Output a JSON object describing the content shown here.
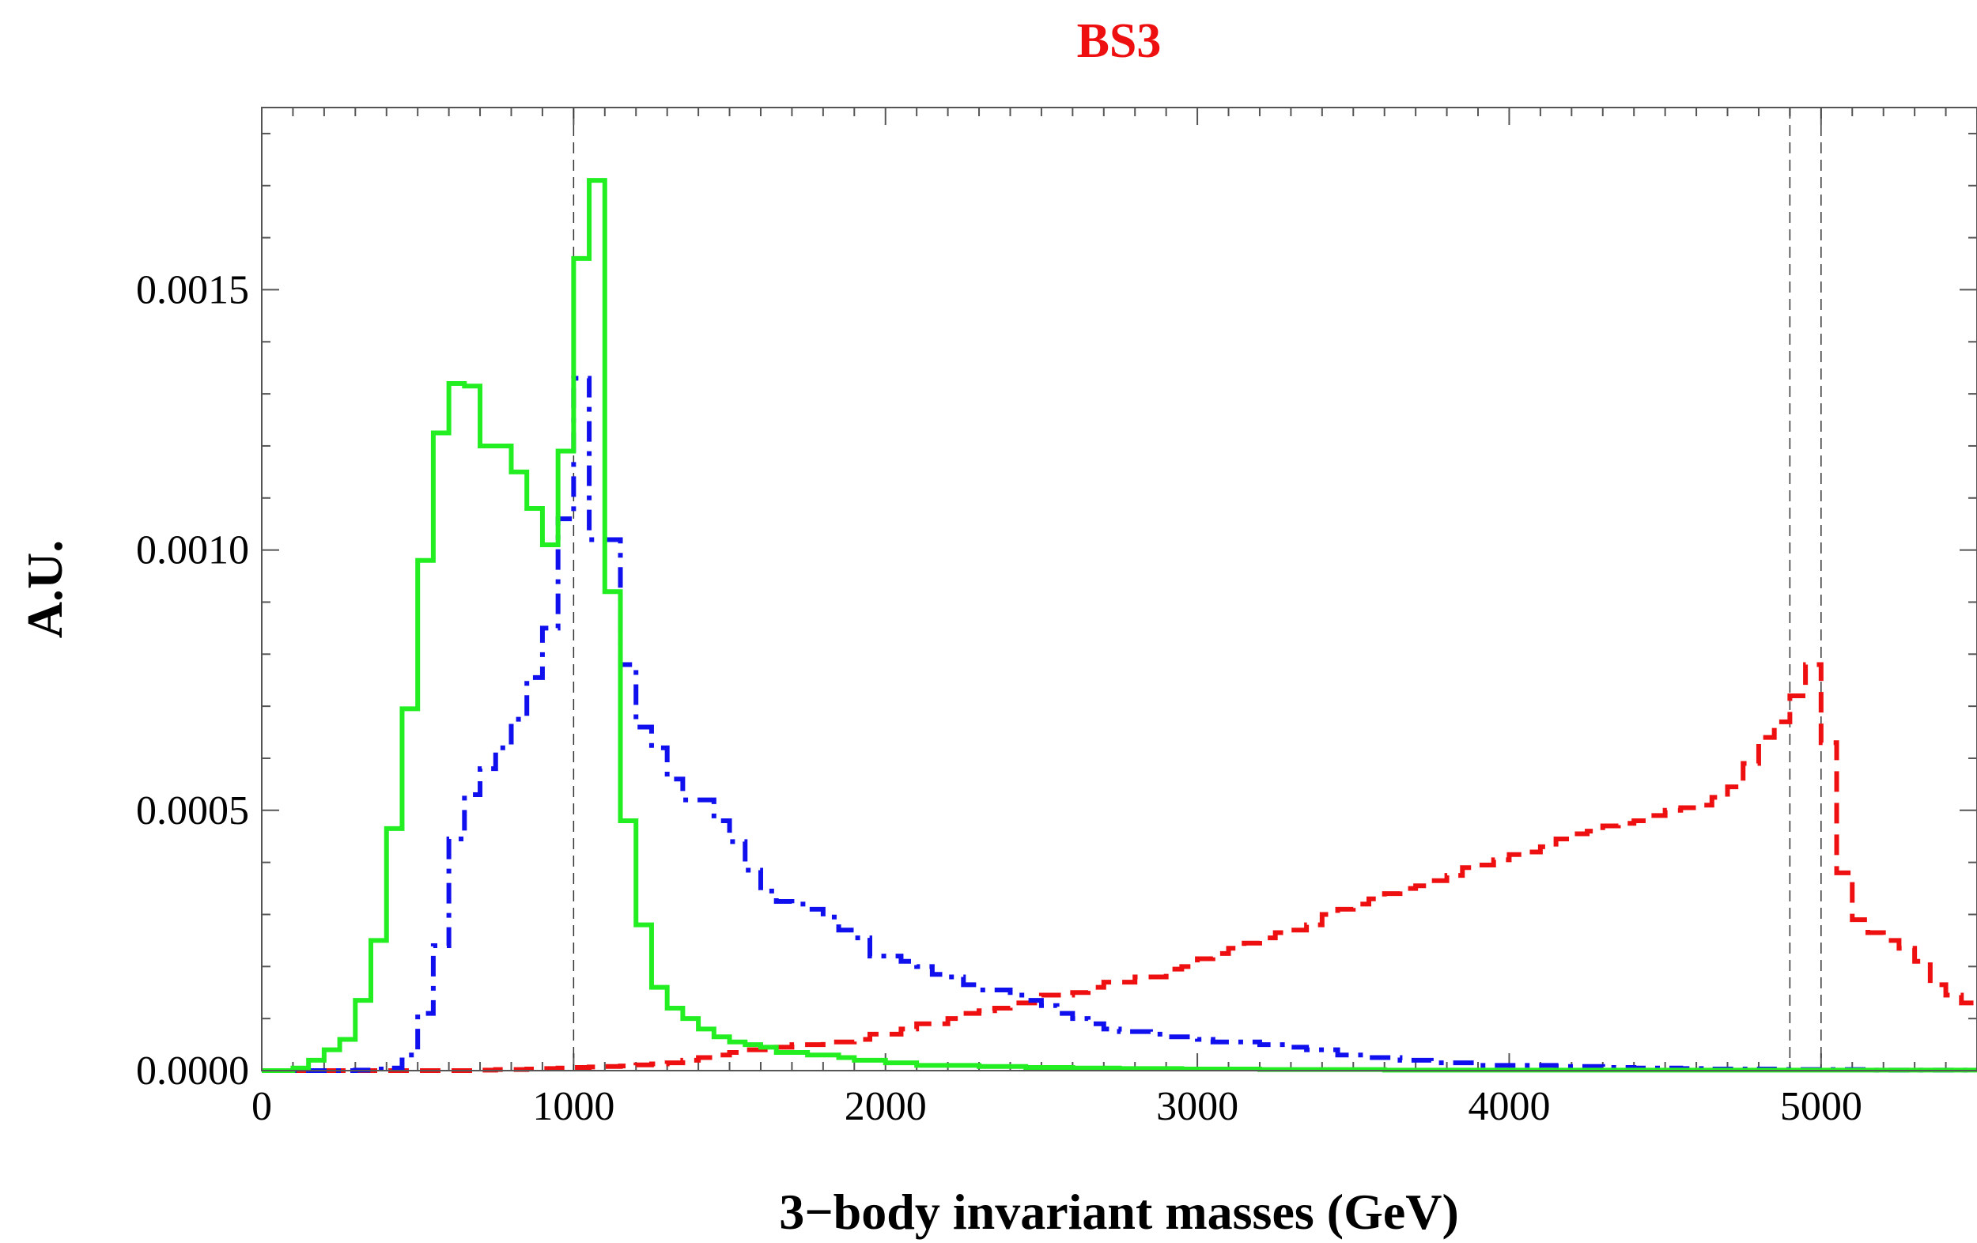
{
  "chart_data": {
    "type": "line",
    "style": "step-histogram",
    "title": "BS3",
    "xlabel": "3−body invariant masses (GeV)",
    "ylabel": "A.U.",
    "xlim": [
      0,
      5500
    ],
    "ylim": [
      0,
      0.00185
    ],
    "x_ticks": [
      0,
      1000,
      2000,
      3000,
      4000,
      5000
    ],
    "x_tick_labels": [
      "0",
      "1000",
      "2000",
      "3000",
      "4000",
      "5000"
    ],
    "y_ticks": [
      0,
      0.0005,
      0.001,
      0.0015
    ],
    "y_tick_labels": [
      "0.0000",
      "0.0005",
      "0.0010",
      "0.0015"
    ],
    "reference_lines_x": [
      1000,
      4900,
      5000
    ],
    "bin_width": 50,
    "series": [
      {
        "name": "green (solid)",
        "color": "#22ee22",
        "dash": "solid",
        "x": [
          0,
          50,
          100,
          150,
          200,
          250,
          300,
          350,
          400,
          450,
          500,
          550,
          600,
          650,
          700,
          750,
          800,
          850,
          900,
          950,
          1000,
          1050,
          1100,
          1150,
          1200,
          1250,
          1300,
          1350,
          1400,
          1450,
          1500,
          1550,
          1600,
          1650,
          1700,
          1750,
          1800,
          1850,
          1900,
          1950,
          2000,
          2050,
          2100,
          2150,
          2200,
          2250,
          2300,
          2350,
          2400,
          2450,
          2500,
          2550,
          2600,
          2650,
          2700,
          2750,
          2800,
          2850,
          2900,
          2950,
          3000,
          3050,
          3100,
          3150,
          3200,
          3250,
          3300,
          3350,
          3400,
          3450,
          3500,
          3550,
          3600,
          3650,
          3700,
          3750,
          3800,
          3850,
          3900,
          3950,
          4000,
          4050,
          4100,
          4150,
          4200,
          4250,
          4300,
          4350,
          4400,
          4450,
          4500,
          4550,
          4600,
          4650,
          4700,
          4750,
          4800,
          4850,
          4900,
          4950,
          5000,
          5050,
          5100,
          5150,
          5200,
          5250,
          5300,
          5350,
          5400,
          5450
        ],
        "values": [
          0,
          0,
          5e-06,
          2e-05,
          4e-05,
          6e-05,
          0.000135,
          0.00025,
          0.000465,
          0.000695,
          0.00098,
          0.001225,
          0.00132,
          0.001315,
          0.0012,
          0.0012,
          0.00115,
          0.00108,
          0.00101,
          0.00119,
          0.00156,
          0.00171,
          0.00092,
          0.00048,
          0.00028,
          0.00016,
          0.00012,
          0.0001,
          8e-05,
          6.5e-05,
          5.5e-05,
          5e-05,
          4.5e-05,
          3.5e-05,
          3.5e-05,
          3e-05,
          3e-05,
          2.5e-05,
          2e-05,
          2e-05,
          1.5e-05,
          1.5e-05,
          1e-05,
          1e-05,
          1e-05,
          1e-05,
          8e-06,
          8e-06,
          8e-06,
          6e-06,
          6e-06,
          6e-06,
          5e-06,
          5e-06,
          5e-06,
          4e-06,
          4e-06,
          4e-06,
          4e-06,
          3e-06,
          3e-06,
          3e-06,
          3e-06,
          3e-06,
          2e-06,
          2e-06,
          2e-06,
          2e-06,
          2e-06,
          2e-06,
          2e-06,
          2e-06,
          1e-06,
          1e-06,
          1e-06,
          1e-06,
          1e-06,
          1e-06,
          1e-06,
          1e-06,
          1e-06,
          1e-06,
          1e-06,
          1e-06,
          1e-06,
          1e-06,
          1e-06,
          1e-06,
          1e-06,
          1e-06,
          1e-06,
          1e-06,
          1e-06,
          1e-06,
          1e-06,
          1e-06,
          1e-06,
          1e-06,
          1e-06,
          1e-06,
          1e-06,
          1e-06,
          1e-06,
          1e-06,
          1e-06,
          1e-06,
          1e-06,
          1e-06,
          1e-06,
          1e-06
        ]
      },
      {
        "name": "blue (dot-dashed)",
        "color": "#1010ee",
        "dash": "dot-dash",
        "x": [
          0,
          50,
          100,
          150,
          200,
          250,
          300,
          350,
          400,
          450,
          500,
          550,
          600,
          650,
          700,
          750,
          800,
          850,
          900,
          950,
          1000,
          1050,
          1100,
          1150,
          1200,
          1250,
          1300,
          1350,
          1400,
          1450,
          1500,
          1550,
          1600,
          1650,
          1700,
          1750,
          1800,
          1850,
          1900,
          1950,
          2000,
          2050,
          2100,
          2150,
          2200,
          2250,
          2300,
          2350,
          2400,
          2450,
          2500,
          2550,
          2600,
          2650,
          2700,
          2750,
          2800,
          2850,
          2900,
          2950,
          3000,
          3050,
          3100,
          3150,
          3200,
          3250,
          3300,
          3350,
          3400,
          3450,
          3500,
          3550,
          3600,
          3650,
          3700,
          3750,
          3800,
          3850,
          3900,
          3950,
          4000,
          4050,
          4100,
          4150,
          4200,
          4250,
          4300,
          4350,
          4400,
          4450,
          4500,
          4550,
          4600,
          4650,
          4700,
          4750,
          4800,
          4850,
          4900,
          4950,
          5000,
          5050,
          5100,
          5150,
          5200,
          5250,
          5300,
          5350,
          5400,
          5450
        ],
        "values": [
          0,
          0,
          0,
          0,
          0,
          0,
          1e-06,
          3e-06,
          5e-06,
          3e-05,
          0.00011,
          0.00024,
          0.000445,
          0.00053,
          0.00058,
          0.00062,
          0.000675,
          0.000755,
          0.00085,
          0.00106,
          0.00133,
          0.00102,
          0.00102,
          0.00078,
          0.00066,
          0.00062,
          0.00056,
          0.00052,
          0.00052,
          0.00048,
          0.00044,
          0.000385,
          0.000345,
          0.000325,
          0.00032,
          0.00031,
          0.000295,
          0.00027,
          0.000255,
          0.00022,
          0.00022,
          0.00021,
          0.0002,
          0.000185,
          0.00018,
          0.000165,
          0.000155,
          0.000155,
          0.000145,
          0.000135,
          0.000125,
          0.00011,
          0.0001,
          9e-05,
          8e-05,
          7.5e-05,
          7.5e-05,
          7e-05,
          6.5e-05,
          6.5e-05,
          6e-05,
          5.5e-05,
          5.5e-05,
          5.5e-05,
          5e-05,
          5e-05,
          4.5e-05,
          4e-05,
          4e-05,
          3e-05,
          3e-05,
          2.5e-05,
          2.5e-05,
          2e-05,
          2e-05,
          1.5e-05,
          1.5e-05,
          1.5e-05,
          1e-05,
          1e-05,
          1e-05,
          1e-05,
          1e-05,
          8e-06,
          8e-06,
          8e-06,
          6e-06,
          6e-06,
          5e-06,
          5e-06,
          5e-06,
          4e-06,
          4e-06,
          3e-06,
          3e-06,
          3e-06,
          3e-06,
          2e-06,
          2e-06,
          2e-06,
          2e-06,
          2e-06,
          2e-06,
          1e-06,
          1e-06,
          1e-06,
          1e-06,
          1e-06,
          1e-06,
          1e-06
        ]
      },
      {
        "name": "red (dashed)",
        "color": "#ee1010",
        "dash": "dashed",
        "x": [
          0,
          50,
          100,
          150,
          200,
          250,
          300,
          350,
          400,
          450,
          500,
          550,
          600,
          650,
          700,
          750,
          800,
          850,
          900,
          950,
          1000,
          1050,
          1100,
          1150,
          1200,
          1250,
          1300,
          1350,
          1400,
          1450,
          1500,
          1550,
          1600,
          1650,
          1700,
          1750,
          1800,
          1850,
          1900,
          1950,
          2000,
          2050,
          2100,
          2150,
          2200,
          2250,
          2300,
          2350,
          2400,
          2450,
          2500,
          2550,
          2600,
          2650,
          2700,
          2750,
          2800,
          2850,
          2900,
          2950,
          3000,
          3050,
          3100,
          3150,
          3200,
          3250,
          3300,
          3350,
          3400,
          3450,
          3500,
          3550,
          3600,
          3650,
          3700,
          3750,
          3800,
          3850,
          3900,
          3950,
          4000,
          4050,
          4100,
          4150,
          4200,
          4250,
          4300,
          4350,
          4400,
          4450,
          4500,
          4550,
          4600,
          4650,
          4700,
          4750,
          4800,
          4850,
          4900,
          4950,
          5000,
          5050,
          5100,
          5150,
          5200,
          5250,
          5300,
          5350,
          5400,
          5450
        ],
        "values": [
          0,
          0,
          0,
          0,
          0,
          0,
          0,
          0,
          0,
          0,
          0,
          0,
          0,
          0,
          1e-06,
          2e-06,
          2e-06,
          3e-06,
          4e-06,
          5e-06,
          6e-06,
          7e-06,
          8e-06,
          9e-06,
          1.1e-05,
          1.3e-05,
          1.5e-05,
          2e-05,
          2.5e-05,
          3e-05,
          3.5e-05,
          4e-05,
          4e-05,
          4.5e-05,
          5e-05,
          5e-05,
          5.5e-05,
          5.5e-05,
          6e-05,
          7e-05,
          7e-05,
          8e-05,
          9e-05,
          9e-05,
          0.0001,
          0.00011,
          0.000115,
          0.00012,
          0.00013,
          0.00013,
          0.000145,
          0.000145,
          0.00015,
          0.00016,
          0.00017,
          0.00017,
          0.00018,
          0.00018,
          0.000195,
          0.0002,
          0.000215,
          0.000225,
          0.000235,
          0.000245,
          0.000255,
          0.000265,
          0.00027,
          0.00028,
          0.0003,
          0.00031,
          0.00032,
          0.00033,
          0.00034,
          0.00035,
          0.000355,
          0.000365,
          0.000375,
          0.00039,
          0.000395,
          0.000405,
          0.000415,
          0.00042,
          0.00043,
          0.000445,
          0.000455,
          0.00046,
          0.00047,
          0.000475,
          0.00048,
          0.00049,
          0.0005,
          0.000505,
          0.00051,
          0.000525,
          0.000545,
          0.00059,
          0.00064,
          0.00067,
          0.00072,
          0.00078,
          0.00063,
          0.00038,
          0.00029,
          0.000265,
          0.00025,
          0.000235,
          0.00021,
          0.000165,
          0.000145,
          0.00013
        ]
      }
    ]
  }
}
